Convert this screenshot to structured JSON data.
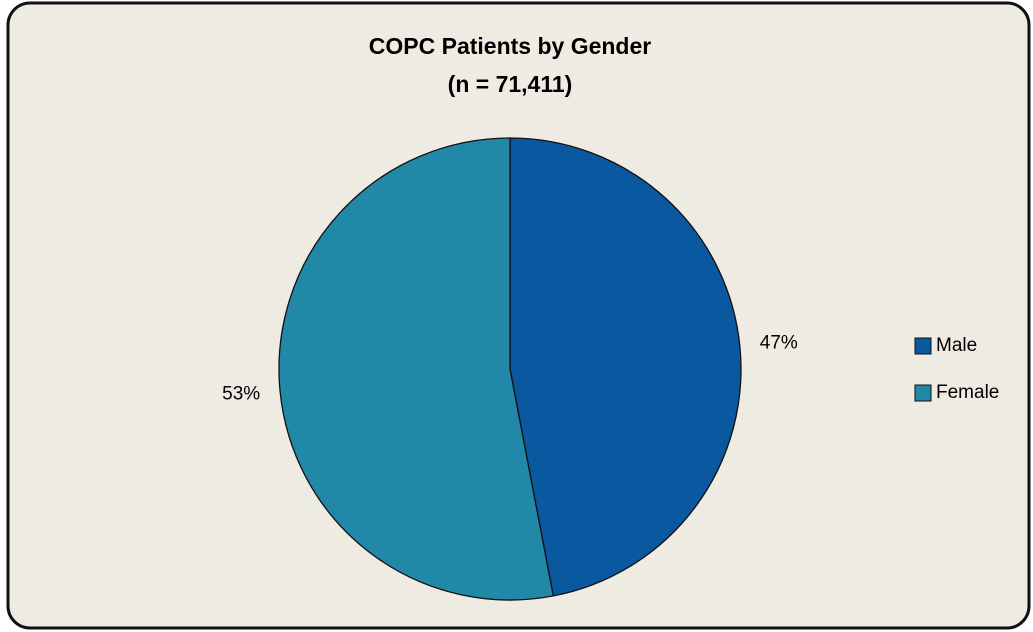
{
  "chart_data": {
    "type": "pie",
    "title": "COPC Patients by Gender",
    "subtitle": "(n = 71,411)",
    "categories": [
      "Male",
      "Female"
    ],
    "values": [
      47,
      53
    ],
    "value_labels": [
      "47%",
      "53%"
    ],
    "colors": [
      "#0a58a0",
      "#2288a8"
    ],
    "legend": "right"
  }
}
